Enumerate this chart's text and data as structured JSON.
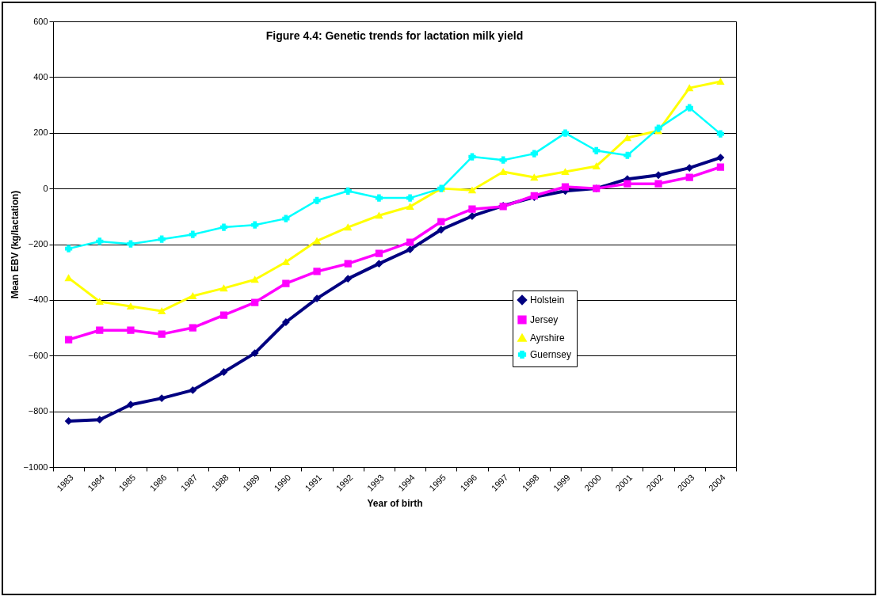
{
  "chart_data": {
    "type": "line",
    "title": "Figure 4.4: Genetic trends for lactation milk yield",
    "xlabel": "Year of birth",
    "ylabel": "Mean EBV (kg/lactation)",
    "categories": [
      "1983",
      "1984",
      "1985",
      "1986",
      "1987",
      "1988",
      "1989",
      "1990",
      "1991",
      "1992",
      "1993",
      "1994",
      "1995",
      "1996",
      "1997",
      "1998",
      "1999",
      "2000",
      "2001",
      "2002",
      "2003",
      "2004"
    ],
    "series": [
      {
        "name": "Holstein",
        "color": "#000080",
        "marker": "diamond",
        "values": [
          -835,
          -830,
          -776,
          -753,
          -724,
          -659,
          -591,
          -480,
          -395,
          -324,
          -270,
          -219,
          -148,
          -99,
          -62,
          -31,
          -9,
          0,
          34,
          48,
          74,
          111
        ]
      },
      {
        "name": "Jersey",
        "color": "#ff00ff",
        "marker": "square",
        "values": [
          -543,
          -509,
          -509,
          -523,
          -500,
          -455,
          -409,
          -341,
          -298,
          -270,
          -233,
          -193,
          -119,
          -74,
          -65,
          -26,
          6,
          0,
          17,
          17,
          40,
          77
        ]
      },
      {
        "name": "Ayrshire",
        "color": "#ffff00",
        "marker": "triangle",
        "values": [
          -321,
          -406,
          -423,
          -440,
          -386,
          -358,
          -327,
          -264,
          -188,
          -139,
          -97,
          -65,
          0,
          -6,
          60,
          40,
          60,
          80,
          182,
          207,
          361,
          384
        ]
      },
      {
        "name": "Guernsey",
        "color": "#00ffff",
        "marker": "cross",
        "values": [
          -216,
          -190,
          -199,
          -182,
          -165,
          -139,
          -131,
          -108,
          -43,
          -9,
          -34,
          -34,
          0,
          114,
          102,
          125,
          199,
          136,
          119,
          216,
          290,
          196
        ]
      }
    ],
    "ylim": [
      -1000,
      600
    ],
    "yticks": [
      -1000,
      -800,
      -600,
      -400,
      -200,
      0,
      200,
      400,
      600
    ],
    "grid": "y",
    "legend": "right"
  }
}
